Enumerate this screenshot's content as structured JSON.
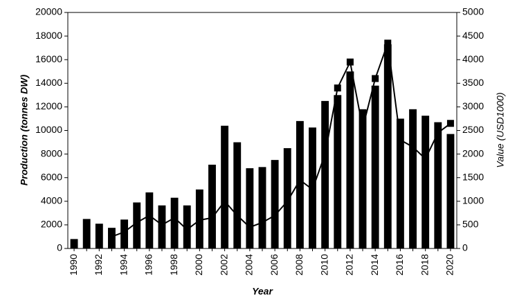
{
  "chart_data": {
    "type": "bar",
    "categories": [
      "1990",
      null,
      "1992",
      null,
      "1994",
      null,
      "1996",
      null,
      "1998",
      null,
      "2000",
      null,
      "2002",
      null,
      "2004",
      null,
      "2006",
      null,
      "2008",
      null,
      "2010",
      null,
      "2012",
      null,
      "2014",
      null,
      "2016",
      null,
      "2018",
      null,
      "2020"
    ],
    "x_label": "Year",
    "y_label": "Production (tonnes DW)",
    "y2_label": "Value (USD1000)",
    "ylim": [
      0,
      20000
    ],
    "yticks": [
      0,
      2000,
      4000,
      6000,
      8000,
      10000,
      12000,
      14000,
      16000,
      18000,
      20000
    ],
    "y2lim": [
      0,
      5000
    ],
    "y2ticks": [
      0,
      500,
      1000,
      1500,
      2000,
      2500,
      3000,
      3500,
      4000,
      4500,
      5000
    ],
    "series": [
      {
        "type": "bar",
        "color": "#000000",
        "values": [
          800,
          2500,
          2100,
          1750,
          2450,
          3900,
          4750,
          3650,
          4300,
          3650,
          5000,
          7100,
          10400,
          9000,
          6800,
          6900,
          7500,
          8500,
          10800,
          10250,
          12500,
          13000,
          15000,
          11800,
          13800,
          17300,
          11000,
          11800,
          11250,
          10700,
          9700
        ]
      },
      {
        "type": "line",
        "axis": "y2",
        "color": "#000000",
        "values": [
          null,
          null,
          null,
          250,
          350,
          550,
          700,
          500,
          650,
          400,
          600,
          650,
          1000,
          700,
          450,
          550,
          700,
          1000,
          1450,
          1250,
          2000,
          3400,
          3950,
          2550,
          3600,
          4350,
          2300,
          2150,
          1900,
          2450,
          2650
        ]
      }
    ]
  }
}
